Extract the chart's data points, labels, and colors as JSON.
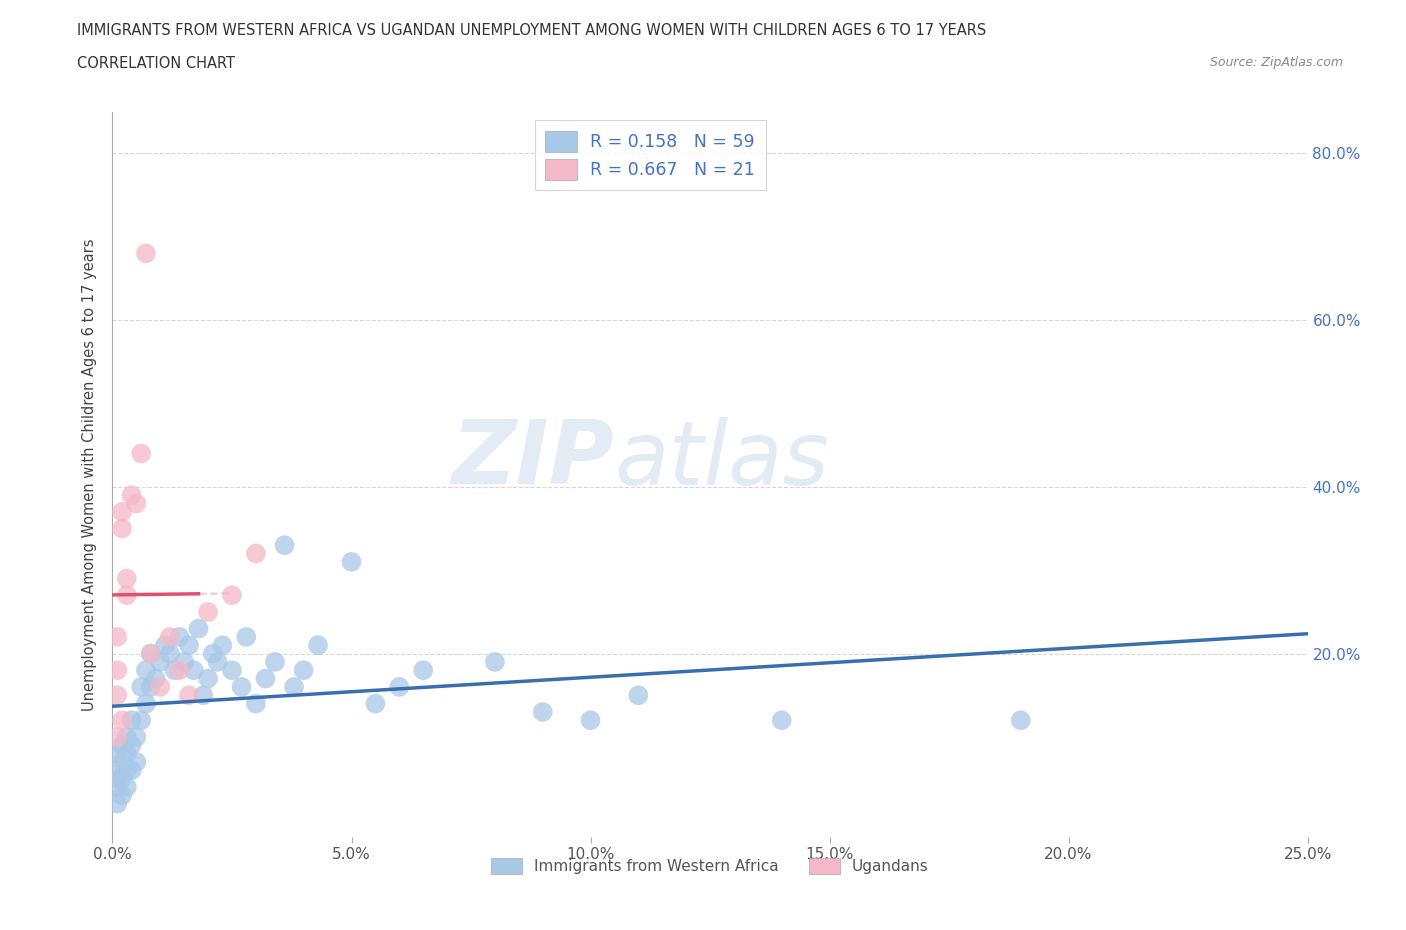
{
  "title": "IMMIGRANTS FROM WESTERN AFRICA VS UGANDAN UNEMPLOYMENT AMONG WOMEN WITH CHILDREN AGES 6 TO 17 YEARS",
  "subtitle": "CORRELATION CHART",
  "source": "Source: ZipAtlas.com",
  "ylabel": "Unemployment Among Women with Children Ages 6 to 17 years",
  "xlim": [
    0.0,
    0.25
  ],
  "ylim": [
    -0.02,
    0.85
  ],
  "xticks": [
    0.0,
    0.05,
    0.1,
    0.15,
    0.2,
    0.25
  ],
  "yticks": [
    0.0,
    0.2,
    0.4,
    0.6,
    0.8
  ],
  "ytick_labels_right": [
    "",
    "20.0%",
    "40.0%",
    "60.0%",
    "80.0%"
  ],
  "xtick_labels": [
    "0.0%",
    "5.0%",
    "10.0%",
    "15.0%",
    "20.0%",
    "25.0%"
  ],
  "R_blue": 0.158,
  "N_blue": 59,
  "R_pink": 0.667,
  "N_pink": 21,
  "blue_color": "#a8c8e8",
  "pink_color": "#f4b8c8",
  "blue_line_color": "#3a6faf",
  "pink_line_color": "#e05070",
  "pink_dash_color": "#e8a0b0",
  "grid_color": "#cccccc",
  "watermark_zip": "ZIP",
  "watermark_atlas": "atlas",
  "legend_label_blue": "Immigrants from Western Africa",
  "legend_label_pink": "Ugandans",
  "blue_x": [
    0.001,
    0.001,
    0.001,
    0.001,
    0.001,
    0.002,
    0.002,
    0.002,
    0.002,
    0.003,
    0.003,
    0.003,
    0.003,
    0.004,
    0.004,
    0.004,
    0.005,
    0.005,
    0.006,
    0.006,
    0.007,
    0.007,
    0.008,
    0.008,
    0.009,
    0.01,
    0.011,
    0.012,
    0.013,
    0.014,
    0.015,
    0.016,
    0.017,
    0.018,
    0.019,
    0.02,
    0.021,
    0.022,
    0.023,
    0.025,
    0.027,
    0.028,
    0.03,
    0.032,
    0.034,
    0.036,
    0.038,
    0.04,
    0.043,
    0.05,
    0.055,
    0.06,
    0.065,
    0.08,
    0.09,
    0.1,
    0.11,
    0.14,
    0.19
  ],
  "blue_y": [
    0.04,
    0.06,
    0.08,
    0.02,
    0.05,
    0.07,
    0.05,
    0.09,
    0.03,
    0.08,
    0.06,
    0.1,
    0.04,
    0.09,
    0.12,
    0.06,
    0.1,
    0.07,
    0.12,
    0.16,
    0.14,
    0.18,
    0.16,
    0.2,
    0.17,
    0.19,
    0.21,
    0.2,
    0.18,
    0.22,
    0.19,
    0.21,
    0.18,
    0.23,
    0.15,
    0.17,
    0.2,
    0.19,
    0.21,
    0.18,
    0.16,
    0.22,
    0.14,
    0.17,
    0.19,
    0.33,
    0.16,
    0.18,
    0.21,
    0.31,
    0.14,
    0.16,
    0.18,
    0.19,
    0.13,
    0.12,
    0.15,
    0.12,
    0.12
  ],
  "pink_x": [
    0.001,
    0.001,
    0.001,
    0.001,
    0.002,
    0.002,
    0.002,
    0.003,
    0.003,
    0.004,
    0.005,
    0.006,
    0.007,
    0.008,
    0.01,
    0.012,
    0.014,
    0.016,
    0.02,
    0.025,
    0.03
  ],
  "pink_y": [
    0.1,
    0.15,
    0.22,
    0.18,
    0.12,
    0.35,
    0.37,
    0.27,
    0.29,
    0.39,
    0.38,
    0.44,
    0.68,
    0.2,
    0.16,
    0.22,
    0.18,
    0.15,
    0.25,
    0.27,
    0.32
  ]
}
